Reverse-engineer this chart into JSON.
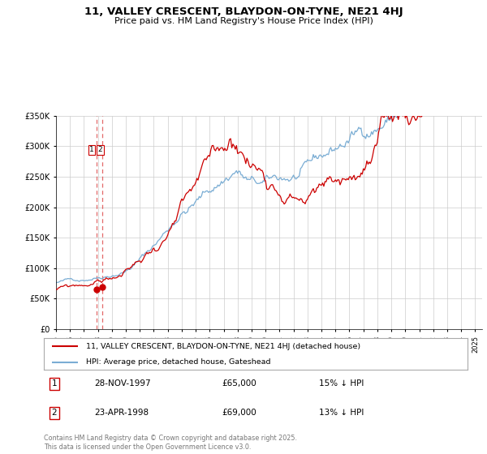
{
  "title": "11, VALLEY CRESCENT, BLAYDON-ON-TYNE, NE21 4HJ",
  "subtitle": "Price paid vs. HM Land Registry's House Price Index (HPI)",
  "legend_line1": "11, VALLEY CRESCENT, BLAYDON-ON-TYNE, NE21 4HJ (detached house)",
  "legend_line2": "HPI: Average price, detached house, Gateshead",
  "footer": "Contains HM Land Registry data © Crown copyright and database right 2025.\nThis data is licensed under the Open Government Licence v3.0.",
  "transactions": [
    {
      "label": "1",
      "date": "28-NOV-1997",
      "price": 65000,
      "pct": "15% ↓ HPI"
    },
    {
      "label": "2",
      "date": "23-APR-1998",
      "price": 69000,
      "pct": "13% ↓ HPI"
    }
  ],
  "trans_dates_num": [
    1997.91,
    1998.31
  ],
  "ylim": [
    0,
    350000
  ],
  "xlim_start": 1995.0,
  "xlim_end": 2025.5,
  "red_color": "#cc0000",
  "blue_color": "#7aadd4",
  "vline_color": "#dd4444",
  "bg_color": "#ffffff",
  "grid_color": "#cccccc"
}
